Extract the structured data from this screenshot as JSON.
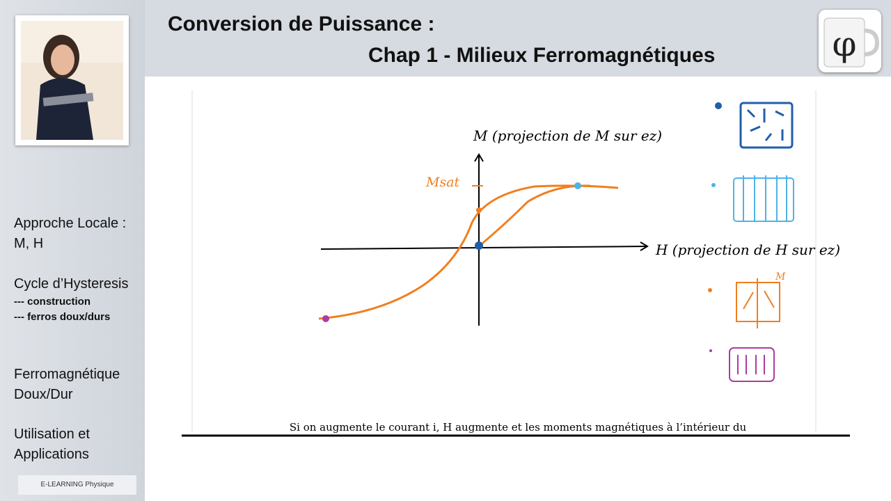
{
  "header": {
    "title_line1": "Conversion de Puissance :",
    "title_line2": "Chap 1 - Milieux Ferromagnétiques"
  },
  "sidebar": {
    "items": [
      {
        "title": "Approche Locale :",
        "subtitle": "M, H"
      },
      {
        "title": "Cycle d’Hysteresis",
        "subitems": [
          "--- construction",
          "--- ferros doux/durs"
        ]
      },
      {
        "title": "Ferromagnétique",
        "subtitle": "Doux/Dur"
      },
      {
        "title": "Utilisation et",
        "subtitle": "Applications"
      }
    ],
    "logo": "E-LEARNING Physique"
  },
  "whiteboard": {
    "y_axis_label": "M (projection de M sur ez)",
    "x_axis_label": "H (projection de H sur ez)",
    "msat_label": "Msat",
    "moment_label": "M",
    "body_text": "Si on augmente le courant i, H augmente et les moments magnétiques à l’intérieur du"
  }
}
